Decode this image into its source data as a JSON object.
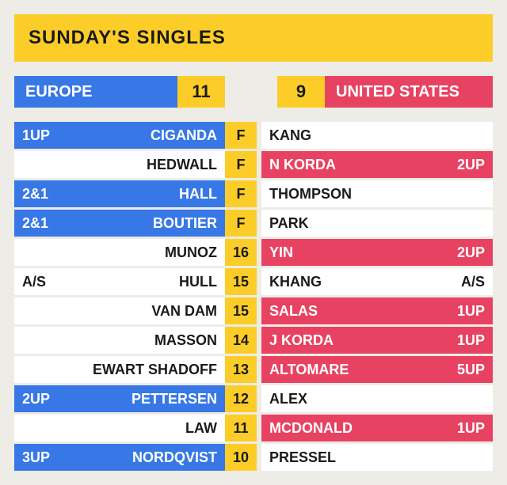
{
  "colors": {
    "background": "#eeece6",
    "yellow": "#fccd28",
    "blue": "#3778e6",
    "red": "#e84262",
    "black": "#1a1a1a",
    "white": "#ffffff"
  },
  "header": {
    "title": "SUNDAY'S SINGLES"
  },
  "scoreboard": {
    "europe": {
      "label": "EUROPE",
      "score": "11"
    },
    "usa": {
      "label": "UNITED STATES",
      "score": "9"
    }
  },
  "matches": [
    {
      "eu_score": "1UP",
      "eu_name": "CIGANDA",
      "hole": "F",
      "us_name": "KANG",
      "us_score": "",
      "winner": "eu"
    },
    {
      "eu_score": "",
      "eu_name": "HEDWALL",
      "hole": "F",
      "us_name": "N KORDA",
      "us_score": "2UP",
      "winner": "us"
    },
    {
      "eu_score": "2&1",
      "eu_name": "HALL",
      "hole": "F",
      "us_name": "THOMPSON",
      "us_score": "",
      "winner": "eu"
    },
    {
      "eu_score": "2&1",
      "eu_name": "BOUTIER",
      "hole": "F",
      "us_name": "PARK",
      "us_score": "",
      "winner": "eu"
    },
    {
      "eu_score": "",
      "eu_name": "MUNOZ",
      "hole": "16",
      "us_name": "YIN",
      "us_score": "2UP",
      "winner": "us"
    },
    {
      "eu_score": "A/S",
      "eu_name": "HULL",
      "hole": "15",
      "us_name": "KHANG",
      "us_score": "A/S",
      "winner": "tie"
    },
    {
      "eu_score": "",
      "eu_name": "VAN DAM",
      "hole": "15",
      "us_name": "SALAS",
      "us_score": "1UP",
      "winner": "us"
    },
    {
      "eu_score": "",
      "eu_name": "MASSON",
      "hole": "14",
      "us_name": "J KORDA",
      "us_score": "1UP",
      "winner": "us"
    },
    {
      "eu_score": "",
      "eu_name": "EWART SHADOFF",
      "hole": "13",
      "us_name": "ALTOMARE",
      "us_score": "5UP",
      "winner": "us"
    },
    {
      "eu_score": "2UP",
      "eu_name": "PETTERSEN",
      "hole": "12",
      "us_name": "ALEX",
      "us_score": "",
      "winner": "eu"
    },
    {
      "eu_score": "",
      "eu_name": "LAW",
      "hole": "11",
      "us_name": "MCDONALD",
      "us_score": "1UP",
      "winner": "us"
    },
    {
      "eu_score": "3UP",
      "eu_name": "NORDQVIST",
      "hole": "10",
      "us_name": "PRESSEL",
      "us_score": "",
      "winner": "eu"
    }
  ]
}
